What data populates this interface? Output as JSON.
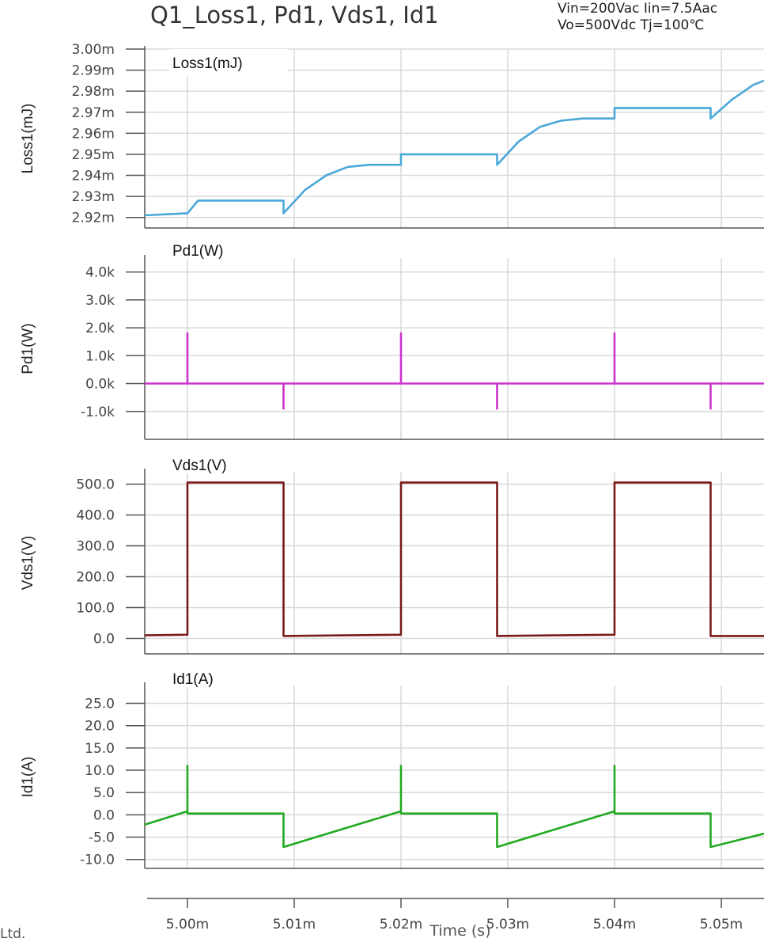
{
  "header": {
    "title": "Q1_Loss1, Pd1, Vds1, Id1",
    "conditions_line1": "Vin=200Vac Iin=7.5Aac",
    "conditions_line2": "Vo=500Vdc Tj=100℃"
  },
  "footer_fragment": "Ltd.",
  "colors": {
    "loss": "#4aa8d8",
    "pd": "#cc33cc",
    "vds": "#7a1a1a",
    "id": "#22aa22",
    "grid": "#d9d9d9",
    "axis": "#555555"
  },
  "chart_data": [
    {
      "type": "line",
      "panel_title": "Loss1(mJ)",
      "ylabel": "Loss1(mJ)",
      "ylim": [
        0.002915,
        0.003
      ],
      "ytick_values": [
        0.00292,
        0.00293,
        0.00294,
        0.00295,
        0.00296,
        0.00297,
        0.00298,
        0.00299,
        0.003
      ],
      "ytick_labels": [
        "2.92m",
        "2.93m",
        "2.94m",
        "2.95m",
        "2.96m",
        "2.97m",
        "2.98m",
        "2.99m",
        "3.00m"
      ],
      "grid": true,
      "series": [
        {
          "x": [
            0.004996,
            0.004998,
            0.005,
            0.005,
            0.005001,
            0.005003,
            0.005005,
            0.005007,
            0.005009,
            0.005009,
            0.005011,
            0.005013,
            0.005015,
            0.005017,
            0.00502,
            0.00502,
            0.005029,
            0.005029,
            0.005031,
            0.005033,
            0.005035,
            0.005037,
            0.00504,
            0.00504,
            0.005049,
            0.005049,
            0.005051,
            0.005053,
            0.005054
          ],
          "y": [
            0.002921,
            0.0029215,
            0.002922,
            0.002922,
            0.002928,
            0.002928,
            0.002928,
            0.002928,
            0.002928,
            0.002922,
            0.002933,
            0.00294,
            0.002944,
            0.002945,
            0.002945,
            0.00295,
            0.00295,
            0.002945,
            0.002956,
            0.002963,
            0.002966,
            0.002967,
            0.002967,
            0.002972,
            0.002972,
            0.002967,
            0.002976,
            0.002983,
            0.002985
          ]
        }
      ]
    },
    {
      "type": "line",
      "panel_title": "Pd1(W)",
      "ylabel": "Pd1(W)",
      "ylim": [
        -2000,
        4500
      ],
      "ytick_values": [
        -1000,
        0,
        1000,
        2000,
        3000,
        4000
      ],
      "ytick_labels": [
        "-1.0k",
        "0.0k",
        "1.0k",
        "2.0k",
        "3.0k",
        "4.0k"
      ],
      "grid": true,
      "series": [
        {
          "x": [
            0.004996,
            0.005,
            0.005,
            0.005,
            0.005009,
            0.005009,
            0.005009,
            0.00502,
            0.00502,
            0.00502,
            0.005029,
            0.005029,
            0.005029,
            0.00504,
            0.00504,
            0.00504,
            0.005049,
            0.005049,
            0.005049,
            0.005054
          ],
          "y": [
            0,
            0,
            1800,
            0,
            0,
            -900,
            0,
            0,
            1800,
            0,
            0,
            -900,
            0,
            0,
            1800,
            0,
            0,
            -900,
            0,
            0
          ]
        }
      ]
    },
    {
      "type": "line",
      "panel_title": "Vds1(V)",
      "ylabel": "Vds1(V)",
      "ylim": [
        -50,
        540
      ],
      "ytick_values": [
        0,
        100,
        200,
        300,
        400,
        500
      ],
      "ytick_labels": [
        "0.0",
        "100.0",
        "200.0",
        "300.0",
        "400.0",
        "500.0"
      ],
      "grid": true,
      "series": [
        {
          "x": [
            0.004996,
            0.005,
            0.005,
            0.005009,
            0.005009,
            0.00502,
            0.00502,
            0.005029,
            0.005029,
            0.00504,
            0.00504,
            0.005049,
            0.005049,
            0.005054
          ],
          "y": [
            10,
            12,
            505,
            505,
            8,
            12,
            505,
            505,
            8,
            12,
            505,
            505,
            8,
            8
          ]
        }
      ]
    },
    {
      "type": "line",
      "panel_title": "Id1(A)",
      "ylabel": "Id1(A)",
      "ylim": [
        -12,
        29
      ],
      "ytick_values": [
        -10,
        -5,
        0,
        5,
        10,
        15,
        20,
        25
      ],
      "ytick_labels": [
        "-10.0",
        "-5.0",
        "0.0",
        "5.0",
        "10.0",
        "15.0",
        "20.0",
        "25.0"
      ],
      "grid": true,
      "series": [
        {
          "x": [
            0.004996,
            0.005,
            0.005,
            0.005,
            0.005009,
            0.005009,
            0.00502,
            0.00502,
            0.00502,
            0.005029,
            0.005029,
            0.00504,
            0.00504,
            0.00504,
            0.005049,
            0.005049,
            0.005054
          ],
          "y": [
            -2.2,
            0.8,
            11,
            0.3,
            0.3,
            -7.2,
            0.8,
            11,
            0.3,
            0.3,
            -7.2,
            0.8,
            11,
            0.3,
            0.3,
            -7.2,
            -4.2
          ]
        }
      ]
    }
  ],
  "x_axis": {
    "xlabel": "Time (s)",
    "xlim": [
      0.004996,
      0.005054
    ],
    "tick_values": [
      0.005,
      0.00501,
      0.00502,
      0.00503,
      0.00504,
      0.00505
    ],
    "tick_labels": [
      "5.00m",
      "5.01m",
      "5.02m",
      "5.03m",
      "5.04m",
      "5.05m"
    ]
  }
}
